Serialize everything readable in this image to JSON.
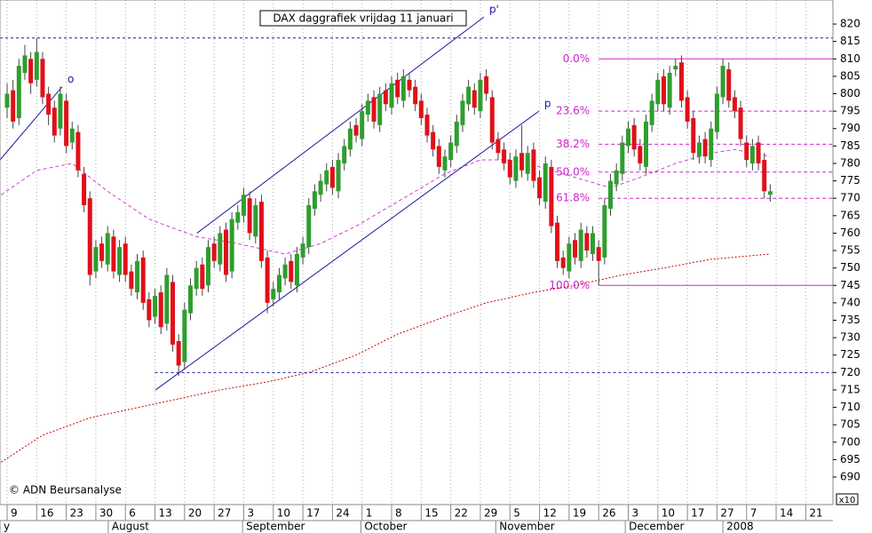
{
  "chart_data": {
    "type": "candlestick",
    "title": "DAX daggrafiek vrijdag 11 januari",
    "copyright": "© ADN Beursanalyse",
    "scale_label": "x10",
    "up_color": "#2e9e2e",
    "down_color": "#e0101a",
    "xlim": [
      -1.2,
      139.6
    ],
    "ylim": [
      682.1,
      826.9
    ],
    "xticks": [
      {
        "value": 0,
        "label": "9"
      },
      {
        "value": 5,
        "label": "16"
      },
      {
        "value": 10,
        "label": "23"
      },
      {
        "value": 15,
        "label": "30"
      },
      {
        "value": 20,
        "label": "6"
      },
      {
        "value": 25,
        "label": "13"
      },
      {
        "value": 30,
        "label": "20"
      },
      {
        "value": 35,
        "label": "27"
      },
      {
        "value": 40,
        "label": "3"
      },
      {
        "value": 45,
        "label": "10"
      },
      {
        "value": 50,
        "label": "17"
      },
      {
        "value": 55,
        "label": "24"
      },
      {
        "value": 60,
        "label": "1"
      },
      {
        "value": 65,
        "label": "8"
      },
      {
        "value": 70,
        "label": "15"
      },
      {
        "value": 75,
        "label": "22"
      },
      {
        "value": 80,
        "label": "29"
      },
      {
        "value": 85,
        "label": "5"
      },
      {
        "value": 90,
        "label": "12"
      },
      {
        "value": 95,
        "label": "19"
      },
      {
        "value": 100,
        "label": "26"
      },
      {
        "value": 105,
        "label": "3"
      },
      {
        "value": 110,
        "label": "10"
      },
      {
        "value": 115,
        "label": "17"
      },
      {
        "value": 120,
        "label": "27"
      },
      {
        "value": 125,
        "label": "7"
      },
      {
        "value": 130,
        "label": "14"
      },
      {
        "value": 135,
        "label": "21"
      }
    ],
    "months": [
      {
        "label": "y",
        "x": -1.2
      },
      {
        "label": "August",
        "x": 17.1
      },
      {
        "label": "September",
        "x": 39.8
      },
      {
        "label": "October",
        "x": 59.8
      },
      {
        "label": "November",
        "x": 82.6
      },
      {
        "label": "December",
        "x": 104.5
      },
      {
        "label": "2008",
        "x": 121
      }
    ],
    "yticks": [
      690,
      695,
      700,
      705,
      710,
      715,
      720,
      725,
      730,
      735,
      740,
      745,
      750,
      755,
      760,
      765,
      770,
      775,
      780,
      785,
      790,
      795,
      800,
      805,
      810,
      815,
      820
    ],
    "candles": [
      [
        796,
        803,
        793,
        800
      ],
      [
        801,
        804,
        790,
        792
      ],
      [
        793,
        810,
        791,
        808
      ],
      [
        806,
        814,
        804,
        811
      ],
      [
        810,
        812,
        800,
        803
      ],
      [
        804,
        816,
        802,
        812
      ],
      [
        810,
        812,
        797,
        799
      ],
      [
        800,
        802,
        791,
        794
      ],
      [
        796,
        798,
        786,
        788
      ],
      [
        790,
        802,
        788,
        800
      ],
      [
        798,
        800,
        783,
        785
      ],
      [
        786,
        792,
        784,
        790
      ],
      [
        789,
        791,
        776,
        778
      ],
      [
        777,
        779,
        766,
        768
      ],
      [
        770,
        772,
        745,
        748
      ],
      [
        749,
        758,
        747,
        756
      ],
      [
        757,
        759,
        750,
        752
      ],
      [
        751,
        762,
        749,
        760
      ],
      [
        759,
        761,
        747,
        749
      ],
      [
        748,
        758,
        746,
        756
      ],
      [
        757,
        759,
        746,
        748
      ],
      [
        749,
        751,
        742,
        744
      ],
      [
        743,
        754,
        741,
        752
      ],
      [
        753,
        755,
        738,
        740
      ],
      [
        741,
        743,
        733,
        735
      ],
      [
        736,
        744,
        734,
        742
      ],
      [
        743,
        745,
        731,
        733
      ],
      [
        734,
        750,
        732,
        748
      ],
      [
        746,
        748,
        726,
        728
      ],
      [
        729,
        731,
        719,
        722
      ],
      [
        723,
        740,
        721,
        738
      ],
      [
        737,
        747,
        735,
        745
      ],
      [
        744,
        752,
        742,
        750
      ],
      [
        751,
        753,
        742,
        744
      ],
      [
        745,
        758,
        743,
        756
      ],
      [
        757,
        759,
        750,
        752
      ],
      [
        751,
        762,
        749,
        760
      ],
      [
        761,
        763,
        746,
        748
      ],
      [
        749,
        766,
        747,
        764
      ],
      [
        763,
        768,
        761,
        766
      ],
      [
        765,
        773,
        763,
        771
      ],
      [
        770,
        772,
        758,
        760
      ],
      [
        759,
        770,
        757,
        768
      ],
      [
        769,
        771,
        750,
        752
      ],
      [
        753,
        755,
        737,
        740
      ],
      [
        741,
        746,
        739,
        744
      ],
      [
        743,
        750,
        741,
        748
      ],
      [
        747,
        753,
        745,
        751
      ],
      [
        752,
        754,
        744,
        746
      ],
      [
        745,
        756,
        743,
        754
      ],
      [
        753,
        759,
        751,
        757
      ],
      [
        756,
        770,
        754,
        768
      ],
      [
        767,
        774,
        765,
        772
      ],
      [
        771,
        777,
        769,
        775
      ],
      [
        774,
        780,
        772,
        778
      ],
      [
        779,
        781,
        771,
        773
      ],
      [
        772,
        783,
        770,
        781
      ],
      [
        780,
        787,
        778,
        785
      ],
      [
        784,
        792,
        782,
        790
      ],
      [
        791,
        793,
        786,
        788
      ],
      [
        787,
        797,
        785,
        795
      ],
      [
        794,
        800,
        792,
        798
      ],
      [
        799,
        801,
        790,
        792
      ],
      [
        791,
        802,
        789,
        800
      ],
      [
        801,
        803,
        795,
        797
      ],
      [
        796,
        805,
        794,
        803
      ],
      [
        804,
        806,
        797,
        799
      ],
      [
        798,
        807,
        796,
        805
      ],
      [
        804,
        806,
        799,
        801
      ],
      [
        802,
        804,
        795,
        797
      ],
      [
        798,
        800,
        791,
        793
      ],
      [
        794,
        796,
        786,
        788
      ],
      [
        789,
        791,
        782,
        784
      ],
      [
        785,
        787,
        777,
        779
      ],
      [
        778,
        784,
        776,
        782
      ],
      [
        781,
        788,
        779,
        786
      ],
      [
        785,
        794,
        783,
        792
      ],
      [
        791,
        800,
        789,
        798
      ],
      [
        797,
        804,
        795,
        802
      ],
      [
        801,
        803,
        794,
        796
      ],
      [
        795,
        806,
        793,
        804
      ],
      [
        805,
        807,
        798,
        800
      ],
      [
        799,
        801,
        784,
        786
      ],
      [
        787,
        789,
        781,
        783
      ],
      [
        784,
        786,
        778,
        780
      ],
      [
        781,
        783,
        774,
        776
      ],
      [
        775,
        784,
        773,
        782
      ],
      [
        783,
        791,
        776,
        778
      ],
      [
        777,
        785,
        775,
        783
      ],
      [
        784,
        786,
        773,
        775
      ],
      [
        776,
        778,
        768,
        770
      ],
      [
        769,
        782,
        767,
        780
      ],
      [
        779,
        781,
        760,
        762
      ],
      [
        763,
        765,
        750,
        752
      ],
      [
        753,
        755,
        748,
        750
      ],
      [
        749,
        759,
        747,
        757
      ],
      [
        758,
        760,
        751,
        753
      ],
      [
        752,
        763,
        750,
        761
      ],
      [
        760,
        762,
        753,
        755
      ],
      [
        754,
        762,
        752,
        760
      ],
      [
        756,
        758,
        745,
        752
      ],
      [
        753,
        770,
        751,
        768
      ],
      [
        767,
        777,
        765,
        775
      ],
      [
        774,
        780,
        772,
        778
      ],
      [
        777,
        788,
        775,
        786
      ],
      [
        785,
        792,
        783,
        790
      ],
      [
        791,
        793,
        782,
        784
      ],
      [
        785,
        787,
        778,
        780
      ],
      [
        779,
        794,
        777,
        792
      ],
      [
        791,
        800,
        789,
        798
      ],
      [
        797,
        806,
        795,
        804
      ],
      [
        805,
        807,
        795,
        797
      ],
      [
        796,
        808,
        794,
        806
      ],
      [
        807,
        810,
        805,
        808
      ],
      [
        809,
        811,
        796,
        798
      ],
      [
        799,
        801,
        790,
        792
      ],
      [
        793,
        795,
        781,
        783
      ],
      [
        782,
        788,
        780,
        786
      ],
      [
        787,
        789,
        780,
        782
      ],
      [
        781,
        792,
        779,
        790
      ],
      [
        789,
        802,
        787,
        800
      ],
      [
        799,
        810,
        797,
        808
      ],
      [
        807,
        809,
        796,
        798
      ],
      [
        799,
        801,
        793,
        795
      ],
      [
        796,
        798,
        785,
        787
      ],
      [
        786,
        788,
        779,
        781
      ],
      [
        780,
        787,
        778,
        785
      ],
      [
        786,
        788,
        778,
        780
      ],
      [
        781,
        783,
        770,
        772
      ],
      [
        771,
        774,
        769,
        772
      ]
    ],
    "moving_averages": [
      {
        "color": "#d040d0",
        "dash": "4 3",
        "x": [
          -1,
          5,
          11,
          17,
          24,
          32,
          39,
          47,
          53,
          59,
          66,
          74,
          80,
          86,
          92,
          98,
          102,
          107,
          113,
          119,
          123,
          129
        ],
        "values": [
          771,
          778,
          780,
          772,
          764,
          759,
          757,
          754,
          757,
          762,
          769,
          777,
          781,
          781,
          778,
          775,
          773,
          776,
          780,
          783,
          784,
          782
        ]
      },
      {
        "color": "#cc0000",
        "dash": "2 2",
        "x": [
          -1,
          6,
          14,
          25,
          36,
          44,
          51,
          59,
          66,
          74,
          81,
          89,
          96,
          104,
          111,
          119,
          129
        ],
        "values": [
          694.3,
          702,
          707,
          711,
          715,
          717.3,
          720,
          725,
          731,
          736,
          740,
          743,
          745,
          748,
          750,
          752.5,
          754
        ]
      }
    ],
    "horizontal_lines": [
      {
        "color": "#1a1aa0",
        "value": 816,
        "from": -1.2
      },
      {
        "color": "#1a1aa0",
        "value": 720,
        "from": 25
      }
    ],
    "fibonacci": {
      "color": "#d020d0",
      "from": 100,
      "levels": [
        {
          "label": "0.0%",
          "value": 810
        },
        {
          "label": "23.6%",
          "value": 795
        },
        {
          "label": "38.2%",
          "value": 785.5
        },
        {
          "label": "50.0%",
          "value": 777.5
        },
        {
          "label": "61.8%",
          "value": 770
        },
        {
          "label": "100.0%",
          "value": 745
        }
      ]
    },
    "trendlines": [
      {
        "label": "o",
        "color": "#1a1aa0",
        "x": [
          -1.2,
          9.3
        ],
        "values": [
          781,
          802
        ]
      },
      {
        "label": "p'",
        "color": "#1a1aa0",
        "x": [
          32.1,
          80.6
        ],
        "values": [
          760,
          822
        ]
      },
      {
        "label": "p",
        "color": "#1a1aa0",
        "x": [
          25.1,
          89.9
        ],
        "values": [
          715,
          795
        ]
      }
    ]
  }
}
